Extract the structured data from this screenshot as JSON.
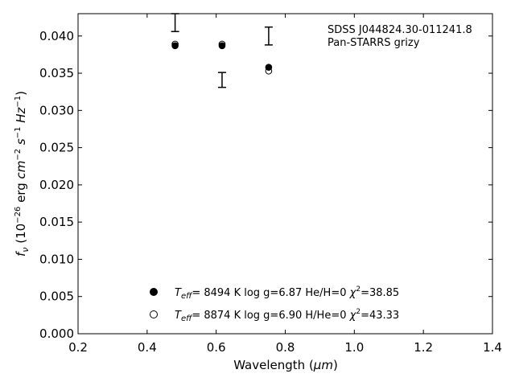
{
  "chart_data": {
    "type": "scatter",
    "xlabel_prefix": "Wavelength (",
    "xlabel_unit": "μm",
    "xlabel_suffix": ")",
    "ylabel_f": "f",
    "ylabel_nu": "ν",
    "ylabel_rest": " (10",
    "ylabel_exp1": "−26",
    "ylabel_erg": " erg ",
    "ylabel_cm": "cm",
    "ylabel_exp2": "−2",
    "ylabel_s": " s",
    "ylabel_exp3": "−1",
    "ylabel_hz": " Hz",
    "ylabel_exp4": "−1",
    "ylabel_close": ")",
    "xlim": [
      0.2,
      1.4
    ],
    "ylim": [
      0.0,
      0.043
    ],
    "xticks": [
      0.2,
      0.4,
      0.6,
      0.8,
      1.0,
      1.2,
      1.4
    ],
    "xtick_labels": [
      "0.2",
      "0.4",
      "0.6",
      "0.8",
      "1.0",
      "1.2",
      "1.4"
    ],
    "yticks": [
      0.0,
      0.005,
      0.01,
      0.015,
      0.02,
      0.025,
      0.03,
      0.035,
      0.04
    ],
    "ytick_labels": [
      "0.000",
      "0.005",
      "0.010",
      "0.015",
      "0.020",
      "0.025",
      "0.030",
      "0.035",
      "0.040"
    ],
    "grid": false,
    "annotation_lines": [
      "SDSS J044824.30-011241.8",
      "Pan-STARRS grizy"
    ],
    "observed": {
      "x": [
        0.481,
        0.617,
        0.752
      ],
      "y_center": [
        0.0418,
        0.0341,
        0.04
      ],
      "y_low": [
        0.0406,
        0.0331,
        0.0388
      ],
      "y_high": [
        0.043,
        0.0351,
        0.0412
      ]
    },
    "series": [
      {
        "marker": "filled-circle",
        "x": [
          0.481,
          0.617,
          0.752
        ],
        "y": [
          0.0387,
          0.0387,
          0.0358
        ],
        "legend_teff_label": "T",
        "legend_teff_sub": "eff",
        "legend_teff": "=  8494 K  log g=6.87  He/H=0  ",
        "legend_chi": "χ",
        "legend_chi_sup": "2",
        "legend_chi_val": "=38.85"
      },
      {
        "marker": "open-circle",
        "x": [
          0.481,
          0.617,
          0.752
        ],
        "y": [
          0.0389,
          0.0389,
          0.0353
        ],
        "legend_teff_label": "T",
        "legend_teff_sub": "eff",
        "legend_teff": "=  8874 K  log g=6.90  H/He=0  ",
        "legend_chi": "χ",
        "legend_chi_sup": "2",
        "legend_chi_val": "=43.33"
      }
    ],
    "legend_placement": "bottom-center",
    "colors": {
      "marker": "#000000",
      "axis": "#000000",
      "background": "#ffffff"
    }
  }
}
